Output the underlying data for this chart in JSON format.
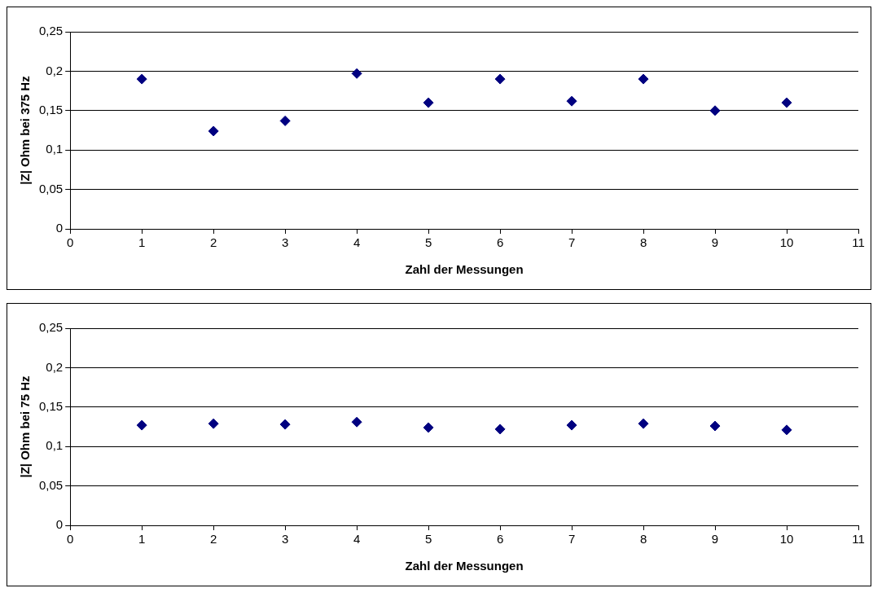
{
  "chart_data": [
    {
      "type": "scatter",
      "xlabel": "Zahl der Messungen",
      "ylabel": "|Z| Ohm bei 375 Hz",
      "x": [
        1,
        2,
        3,
        4,
        5,
        6,
        7,
        8,
        9,
        10
      ],
      "series": [
        {
          "color": "#000080",
          "values": [
            0.19,
            0.124,
            0.137,
            0.197,
            0.16,
            0.19,
            0.162,
            0.19,
            0.15,
            0.16
          ]
        }
      ],
      "xlim": [
        0,
        11
      ],
      "xticks": [
        0,
        1,
        2,
        3,
        4,
        5,
        6,
        7,
        8,
        9,
        10,
        11
      ],
      "ylim": [
        0,
        0.25
      ],
      "yticks": [
        0,
        {
          "value": 0.05,
          "label": "0,05"
        },
        {
          "value": 0.1,
          "label": "0,1"
        },
        {
          "value": 0.15,
          "label": "0,15"
        },
        {
          "value": 0.2,
          "label": "0,2"
        },
        {
          "value": 0.25,
          "label": "0,25"
        }
      ],
      "grid": "y",
      "marker": "diamond"
    },
    {
      "type": "scatter",
      "xlabel": "Zahl der Messungen",
      "ylabel": "|Z| Ohm bei 75 Hz",
      "x": [
        1,
        2,
        3,
        4,
        5,
        6,
        7,
        8,
        9,
        10
      ],
      "series": [
        {
          "color": "#000080",
          "values": [
            0.127,
            0.129,
            0.128,
            0.131,
            0.124,
            0.122,
            0.127,
            0.129,
            0.126,
            0.121
          ]
        }
      ],
      "xlim": [
        0,
        11
      ],
      "xticks": [
        0,
        1,
        2,
        3,
        4,
        5,
        6,
        7,
        8,
        9,
        10,
        11
      ],
      "ylim": [
        0,
        0.25
      ],
      "yticks": [
        0,
        {
          "value": 0.05,
          "label": "0,05"
        },
        {
          "value": 0.1,
          "label": "0,1"
        },
        {
          "value": 0.15,
          "label": "0,15"
        },
        {
          "value": 0.2,
          "label": "0,2"
        },
        {
          "value": 0.25,
          "label": "0,25"
        }
      ],
      "grid": "y",
      "marker": "diamond"
    }
  ]
}
